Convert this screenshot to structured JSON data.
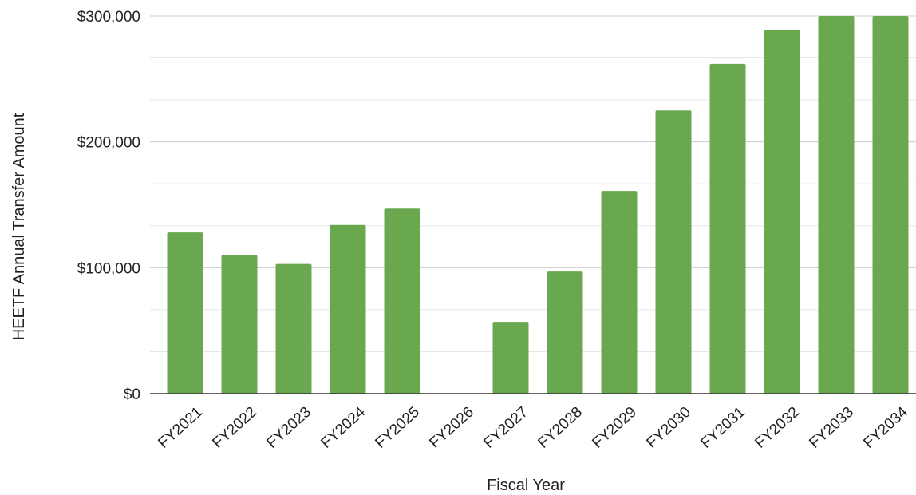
{
  "chart_data": {
    "type": "bar",
    "title": "",
    "xlabel": "Fiscal Year",
    "ylabel": "HEETF Annual Transfer Amount",
    "categories": [
      "FY2021",
      "FY2022",
      "FY2023",
      "FY2024",
      "FY2025",
      "FY2026",
      "FY2027",
      "FY2028",
      "FY2029",
      "FY2030",
      "FY2031",
      "FY2032",
      "FY2033",
      "FY2034"
    ],
    "values": [
      128000,
      110000,
      103000,
      134000,
      147000,
      0,
      57000,
      97000,
      161000,
      225000,
      262000,
      289000,
      300000,
      300000
    ],
    "ylim": [
      0,
      300000
    ],
    "yticks": [
      0,
      100000,
      200000,
      300000
    ],
    "ytick_labels": [
      "$0",
      "$100,000",
      "$200,000",
      "$300,000"
    ],
    "minor_gridlines": true,
    "legend": "none",
    "bar_color": "#6aa84f",
    "grid_color": "#d9d9d9",
    "axis_color": "#333333"
  }
}
